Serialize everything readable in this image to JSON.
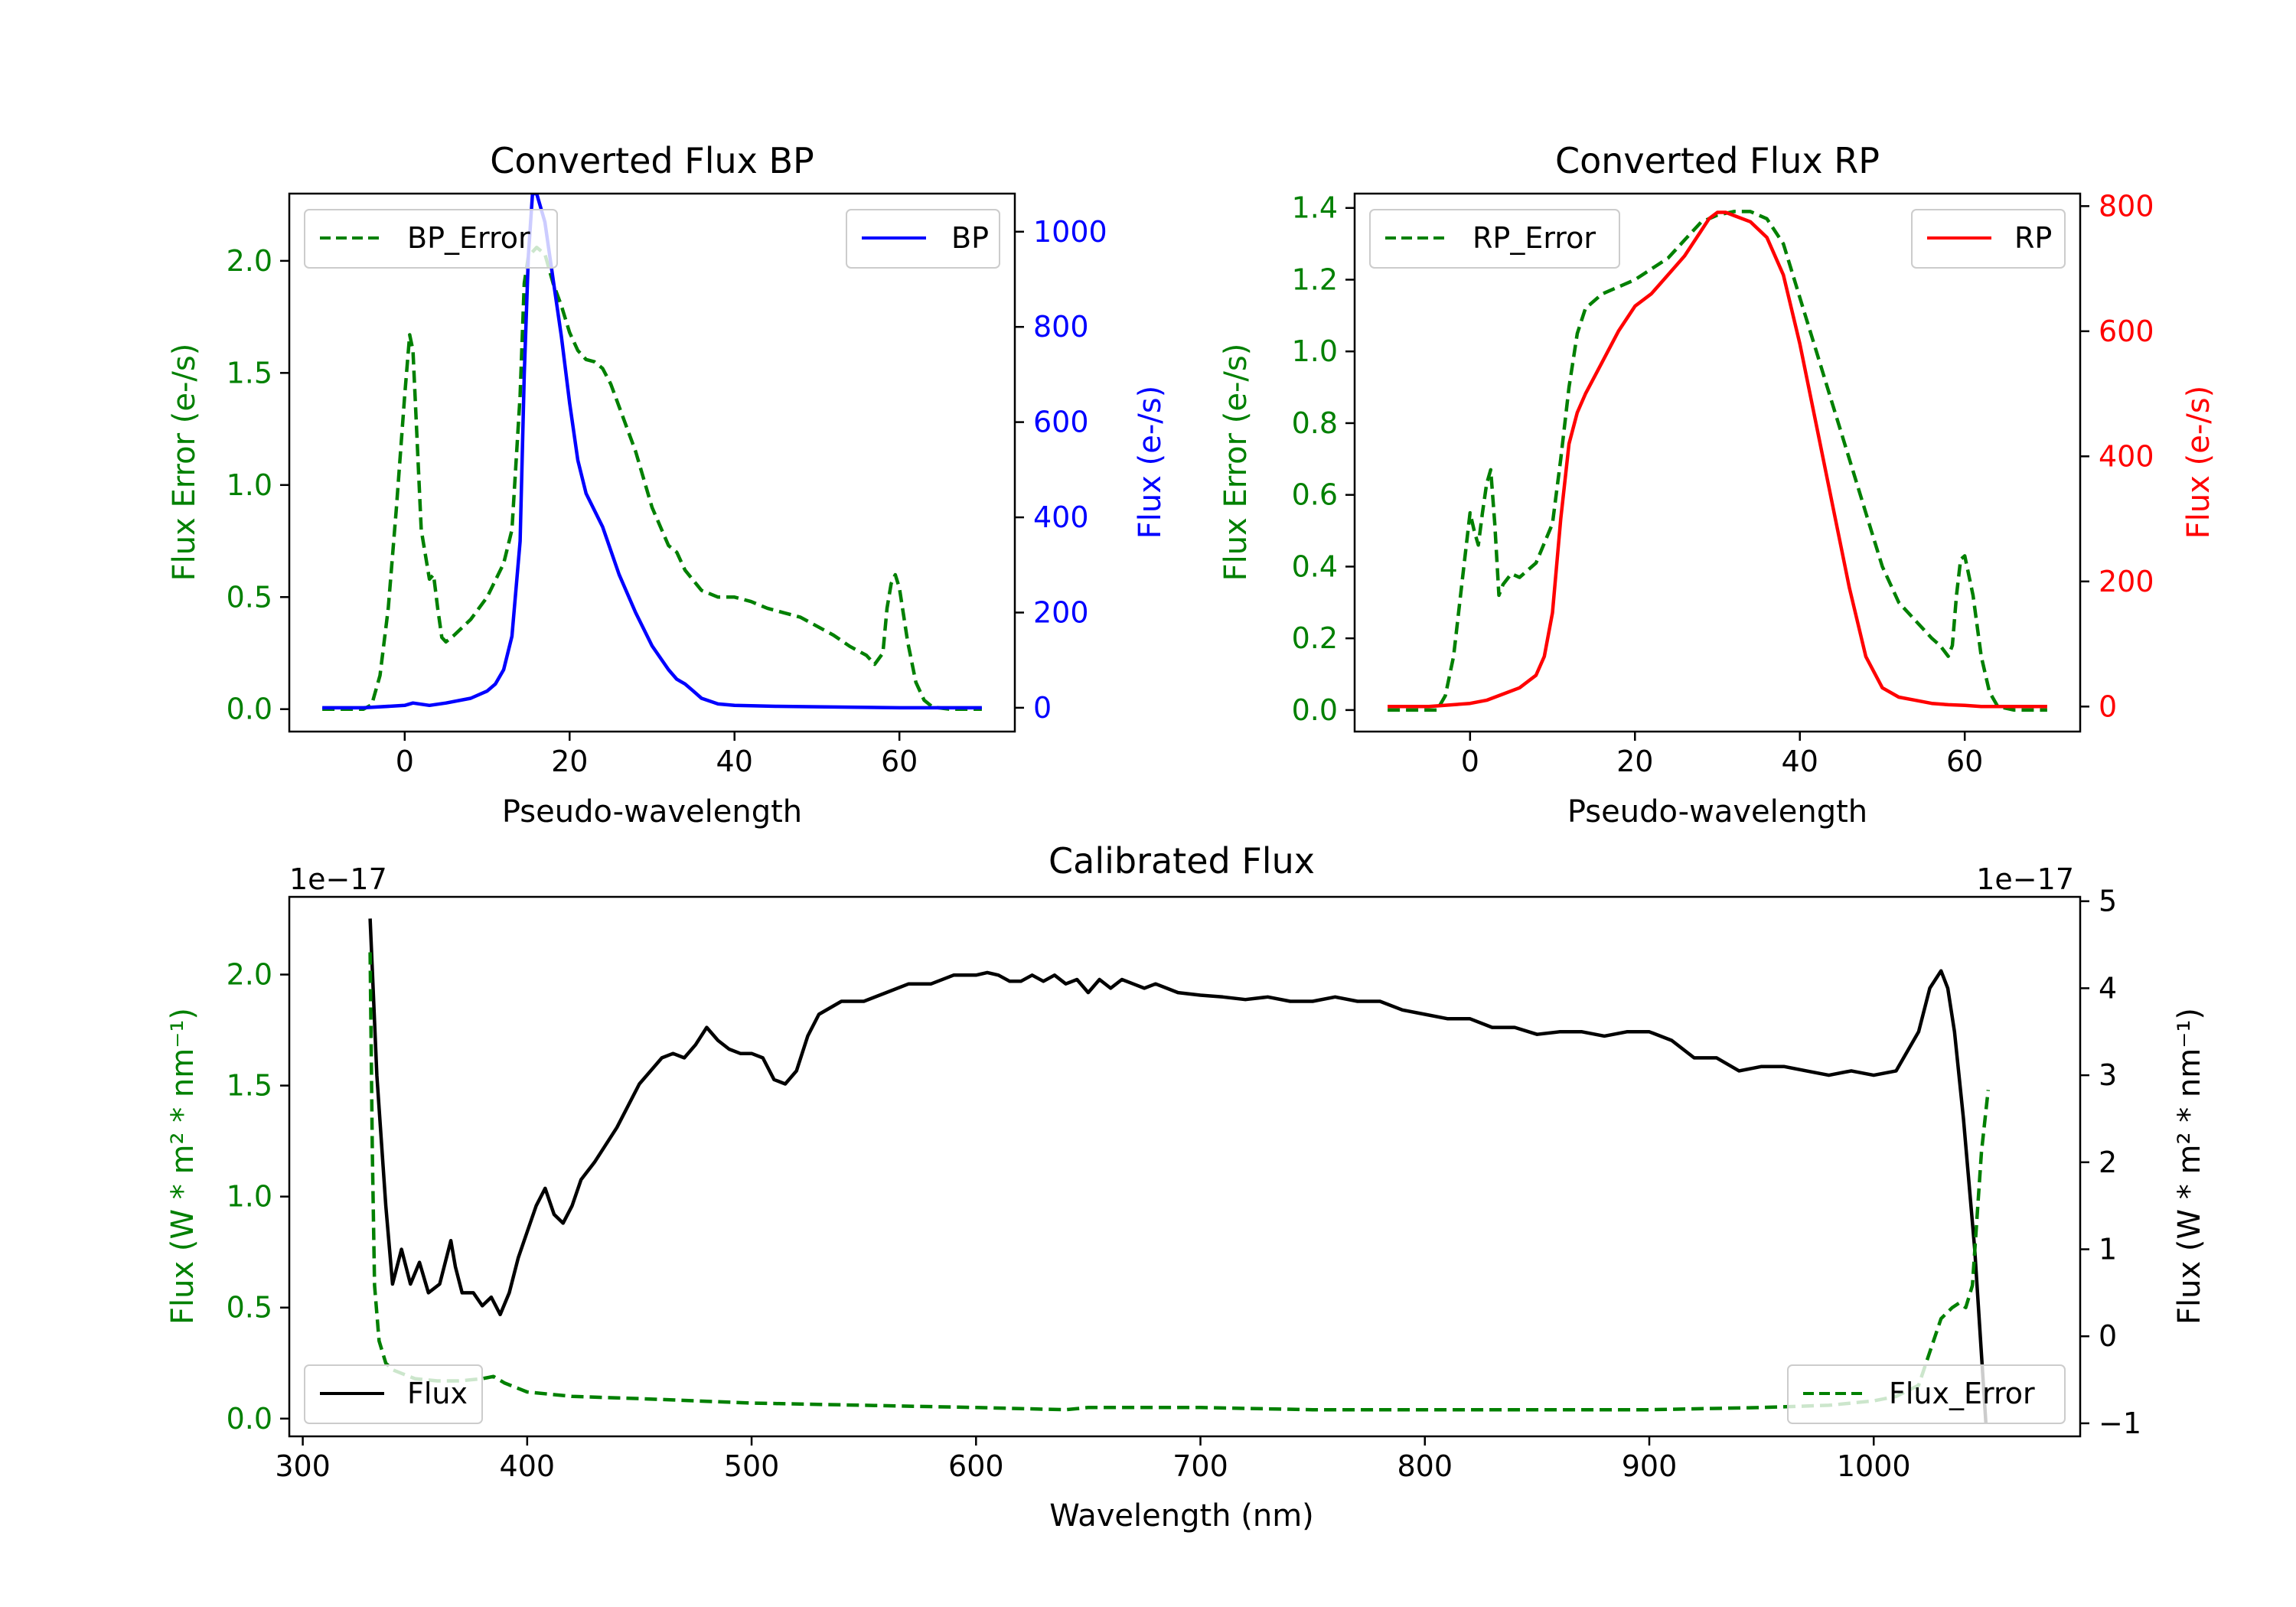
{
  "chart_data": [
    {
      "id": "bp",
      "type": "line",
      "title": "Converted Flux BP",
      "xlabel": "Pseudo-wavelength",
      "xlim": [
        -14,
        74
      ],
      "xticks": [
        0,
        20,
        40,
        60
      ],
      "left_axis": {
        "label": "Flux Error (e-/s)",
        "color": "#008000",
        "lim": [
          -0.1,
          2.3
        ],
        "ticks": [
          "0.0",
          "0.5",
          "1.0",
          "1.5",
          "2.0"
        ]
      },
      "right_axis": {
        "label": "Flux (e-/s)",
        "color": "#0000ff",
        "lim": [
          -50,
          1080
        ],
        "ticks": [
          "0",
          "200",
          "400",
          "600",
          "800",
          "1000"
        ]
      },
      "series": [
        {
          "name": "BP_Error",
          "axis": "left",
          "color": "#008000",
          "dash": true,
          "x": [
            -10,
            -5,
            -4,
            -3,
            -2,
            -1,
            0,
            0.6,
            1,
            1.5,
            2,
            3,
            3.5,
            4,
            4.5,
            5,
            6,
            8,
            10,
            12,
            13,
            14,
            14.5,
            15,
            16,
            17,
            18,
            19,
            20,
            21,
            22,
            23,
            24,
            25,
            26,
            28,
            30,
            32,
            33,
            34,
            36,
            38,
            40,
            42,
            44,
            46,
            48,
            50,
            52,
            54,
            56,
            57,
            58,
            58.5,
            59,
            59.5,
            60,
            61,
            62,
            63,
            64,
            66,
            70
          ],
          "y": [
            0,
            0,
            0.02,
            0.15,
            0.45,
            0.9,
            1.4,
            1.67,
            1.6,
            1.2,
            0.8,
            0.58,
            0.6,
            0.45,
            0.32,
            0.3,
            0.33,
            0.4,
            0.5,
            0.65,
            0.8,
            1.4,
            1.9,
            2.02,
            2.06,
            2.03,
            1.9,
            1.8,
            1.68,
            1.6,
            1.56,
            1.55,
            1.52,
            1.45,
            1.35,
            1.15,
            0.9,
            0.73,
            0.7,
            0.62,
            0.53,
            0.5,
            0.5,
            0.48,
            0.45,
            0.43,
            0.41,
            0.37,
            0.33,
            0.28,
            0.24,
            0.2,
            0.25,
            0.45,
            0.56,
            0.6,
            0.54,
            0.3,
            0.12,
            0.04,
            0.01,
            0,
            0
          ]
        },
        {
          "name": "BP",
          "axis": "right",
          "color": "#0000ff",
          "dash": false,
          "x": [
            -10,
            -5,
            0,
            1,
            3,
            5,
            8,
            10,
            11,
            12,
            13,
            14,
            14.5,
            15,
            15.5,
            16,
            17,
            18,
            19,
            20,
            21,
            22,
            24,
            26,
            28,
            30,
            32,
            33,
            34,
            35,
            36,
            38,
            40,
            45,
            50,
            55,
            60,
            65,
            70
          ],
          "y": [
            0,
            0,
            5,
            10,
            5,
            10,
            20,
            35,
            50,
            80,
            150,
            350,
            700,
            950,
            1080,
            1080,
            1020,
            900,
            780,
            640,
            520,
            450,
            380,
            280,
            200,
            130,
            80,
            60,
            50,
            35,
            20,
            8,
            5,
            3,
            2,
            1,
            0,
            0,
            0
          ]
        }
      ],
      "legends": [
        {
          "entry": "BP_Error",
          "position": "upper left"
        },
        {
          "entry": "BP",
          "position": "upper right"
        }
      ]
    },
    {
      "id": "rp",
      "type": "line",
      "title": "Converted Flux RP",
      "xlabel": "Pseudo-wavelength",
      "xlim": [
        -14,
        74
      ],
      "xticks": [
        0,
        20,
        40,
        60
      ],
      "left_axis": {
        "label": "Flux Error (e-/s)",
        "color": "#008000",
        "lim": [
          -0.06,
          1.44
        ],
        "ticks": [
          "0.0",
          "0.2",
          "0.4",
          "0.6",
          "0.8",
          "1.0",
          "1.2",
          "1.4"
        ]
      },
      "right_axis": {
        "label": "Flux (e-/s)",
        "color": "#ff0000",
        "lim": [
          -40,
          820
        ],
        "ticks": [
          "0",
          "200",
          "400",
          "600",
          "800"
        ]
      },
      "series": [
        {
          "name": "RP_Error",
          "axis": "left",
          "color": "#008000",
          "dash": true,
          "x": [
            -10,
            -4,
            -3,
            -2,
            -1,
            0,
            0.5,
            1,
            1.5,
            2,
            2.5,
            3,
            3.5,
            4,
            5,
            6,
            8,
            10,
            11,
            12,
            13,
            14,
            16,
            18,
            20,
            22,
            24,
            26,
            28,
            30,
            32,
            34,
            36,
            38,
            40,
            42,
            44,
            46,
            48,
            50,
            52,
            54,
            56,
            57,
            58,
            58.5,
            59,
            59.5,
            60,
            61,
            62,
            63,
            64,
            66,
            70
          ],
          "y": [
            0,
            0,
            0.04,
            0.15,
            0.35,
            0.55,
            0.5,
            0.46,
            0.55,
            0.63,
            0.67,
            0.52,
            0.32,
            0.35,
            0.38,
            0.37,
            0.41,
            0.52,
            0.7,
            0.9,
            1.05,
            1.12,
            1.16,
            1.18,
            1.2,
            1.23,
            1.26,
            1.31,
            1.36,
            1.38,
            1.39,
            1.39,
            1.37,
            1.3,
            1.15,
            1.0,
            0.85,
            0.7,
            0.55,
            0.4,
            0.3,
            0.25,
            0.2,
            0.18,
            0.15,
            0.18,
            0.32,
            0.42,
            0.43,
            0.32,
            0.15,
            0.05,
            0.01,
            0,
            0
          ]
        },
        {
          "name": "RP",
          "axis": "right",
          "color": "#ff0000",
          "dash": false,
          "x": [
            -10,
            -5,
            0,
            2,
            4,
            6,
            8,
            9,
            10,
            11,
            12,
            13,
            14,
            16,
            18,
            20,
            22,
            24,
            26,
            28,
            29,
            30,
            31,
            32,
            34,
            36,
            38,
            40,
            42,
            44,
            46,
            48,
            50,
            52,
            54,
            56,
            58,
            60,
            62,
            65,
            70
          ],
          "y": [
            0,
            0,
            5,
            10,
            20,
            30,
            50,
            80,
            150,
            300,
            420,
            470,
            500,
            550,
            600,
            640,
            660,
            690,
            720,
            760,
            780,
            790,
            790,
            785,
            775,
            750,
            690,
            580,
            450,
            320,
            190,
            80,
            30,
            15,
            10,
            5,
            3,
            2,
            0,
            0,
            0
          ]
        }
      ],
      "legends": [
        {
          "entry": "RP_Error",
          "position": "upper left"
        },
        {
          "entry": "RP",
          "position": "upper right"
        }
      ]
    },
    {
      "id": "calibrated",
      "type": "line",
      "title": "Calibrated Flux",
      "xlabel": "Wavelength (nm)",
      "xlim": [
        294,
        1092
      ],
      "xticks": [
        300,
        400,
        500,
        600,
        700,
        800,
        900,
        1000
      ],
      "left_axis": {
        "label": "Flux (W * m² * nm⁻¹)",
        "color": "#008000",
        "multiplier": "1e−17",
        "lim": [
          -0.08,
          2.35
        ],
        "ticks": [
          "0.0",
          "0.5",
          "1.0",
          "1.5",
          "2.0"
        ]
      },
      "right_axis": {
        "label": "Flux (W * m² * nm⁻¹)",
        "color": "#000000",
        "multiplier": "1e−17",
        "lim": [
          -1.15,
          5.05
        ],
        "ticks": [
          "−1",
          "0",
          "1",
          "2",
          "3",
          "4",
          "5"
        ]
      },
      "series": [
        {
          "name": "Flux",
          "axis": "right",
          "color": "#000000",
          "dash": false,
          "x": [
            330,
            333,
            337,
            340,
            344,
            348,
            352,
            356,
            361,
            366,
            368,
            371,
            376,
            380,
            384,
            388,
            392,
            396,
            400,
            404,
            408,
            412,
            416,
            420,
            424,
            430,
            440,
            450,
            460,
            465,
            470,
            475,
            480,
            485,
            490,
            495,
            500,
            505,
            510,
            515,
            520,
            525,
            530,
            540,
            550,
            560,
            570,
            580,
            590,
            600,
            605,
            610,
            615,
            620,
            625,
            630,
            635,
            640,
            645,
            650,
            655,
            660,
            665,
            670,
            675,
            680,
            685,
            690,
            700,
            710,
            720,
            730,
            740,
            750,
            760,
            770,
            780,
            790,
            800,
            810,
            820,
            830,
            840,
            850,
            860,
            870,
            880,
            890,
            900,
            910,
            920,
            930,
            940,
            950,
            960,
            970,
            980,
            990,
            1000,
            1010,
            1020,
            1025,
            1030,
            1033,
            1036,
            1040,
            1045,
            1050
          ],
          "y": [
            4.8,
            3.0,
            1.5,
            0.6,
            1.0,
            0.6,
            0.85,
            0.5,
            0.6,
            1.1,
            0.8,
            0.5,
            0.5,
            0.35,
            0.45,
            0.25,
            0.5,
            0.9,
            1.2,
            1.5,
            1.7,
            1.4,
            1.3,
            1.5,
            1.8,
            2.0,
            2.4,
            2.9,
            3.2,
            3.25,
            3.2,
            3.35,
            3.55,
            3.4,
            3.3,
            3.25,
            3.25,
            3.2,
            2.95,
            2.9,
            3.05,
            3.45,
            3.7,
            3.85,
            3.85,
            3.95,
            4.05,
            4.05,
            4.15,
            4.15,
            4.18,
            4.15,
            4.08,
            4.08,
            4.15,
            4.08,
            4.15,
            4.05,
            4.1,
            3.95,
            4.1,
            4.0,
            4.1,
            4.05,
            4.0,
            4.05,
            4.0,
            3.95,
            3.92,
            3.9,
            3.87,
            3.9,
            3.85,
            3.85,
            3.9,
            3.85,
            3.85,
            3.75,
            3.7,
            3.65,
            3.65,
            3.55,
            3.55,
            3.47,
            3.5,
            3.5,
            3.45,
            3.5,
            3.5,
            3.4,
            3.2,
            3.2,
            3.05,
            3.1,
            3.1,
            3.05,
            3.0,
            3.05,
            3.0,
            3.05,
            3.5,
            4.0,
            4.2,
            4.0,
            3.5,
            2.5,
            1.0,
            -1.0
          ]
        },
        {
          "name": "Flux_Error",
          "axis": "left",
          "color": "#008000",
          "dash": true,
          "x": [
            330,
            331,
            332,
            334,
            337,
            340,
            345,
            350,
            360,
            370,
            380,
            385,
            390,
            400,
            420,
            450,
            500,
            550,
            600,
            640,
            650,
            700,
            750,
            800,
            850,
            900,
            950,
            980,
            1000,
            1010,
            1020,
            1025,
            1030,
            1035,
            1038,
            1041,
            1044,
            1048,
            1051
          ],
          "y": [
            2.1,
            1.2,
            0.6,
            0.35,
            0.25,
            0.22,
            0.2,
            0.18,
            0.17,
            0.17,
            0.18,
            0.19,
            0.16,
            0.12,
            0.1,
            0.09,
            0.07,
            0.06,
            0.05,
            0.04,
            0.05,
            0.05,
            0.04,
            0.04,
            0.04,
            0.04,
            0.05,
            0.06,
            0.08,
            0.1,
            0.15,
            0.3,
            0.45,
            0.5,
            0.52,
            0.5,
            0.6,
            1.2,
            1.48
          ]
        }
      ],
      "legends": [
        {
          "entry": "Flux",
          "position": "lower left"
        },
        {
          "entry": "Flux_Error",
          "position": "lower right"
        }
      ]
    }
  ]
}
